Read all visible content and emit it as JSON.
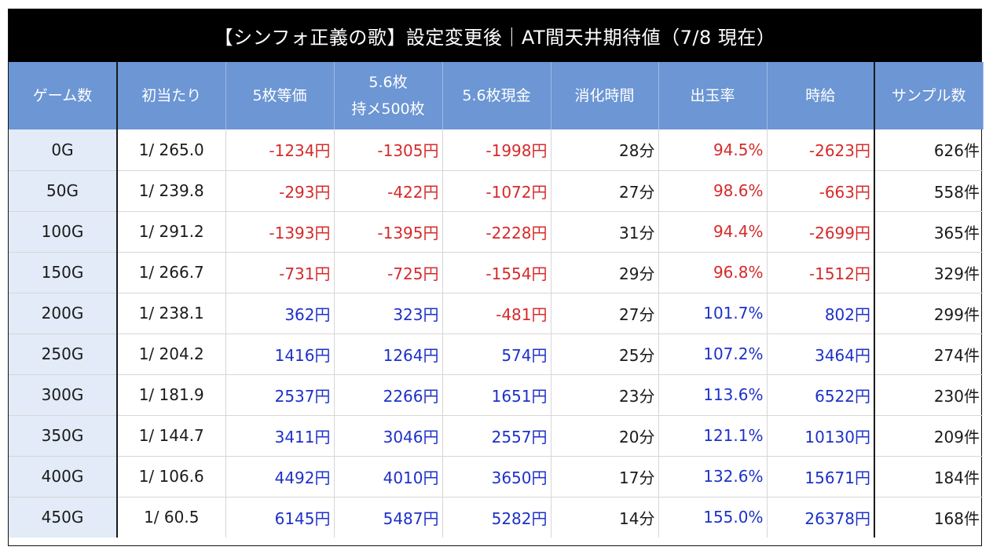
{
  "title": "【シンフォ正義の歌】設定変更後｜AT間天井期待値（7/8 現在）",
  "colors": {
    "header_bg": "#6c96d4",
    "title_bg": "#000000",
    "game_col_bg": "#e2ebf7",
    "negative": "#d62a2a",
    "positive": "#1d31c9"
  },
  "headers": {
    "game": "ゲーム数",
    "first_hit": "初当たり",
    "v5": "5枚等価",
    "v56_hold_line1": "5.6枚",
    "v56_hold_line2": "持メ500枚",
    "v56_cash": "5.6枚現金",
    "time": "消化時間",
    "payout": "出玉率",
    "hourly": "時給",
    "samples": "サンプル数"
  },
  "rows": [
    {
      "game": "0G",
      "first_hit": "1/ 265.0",
      "v5": "-1234円",
      "v56_hold": "-1305円",
      "v56_cash": "-1998円",
      "time": "28分",
      "payout": "94.5%",
      "hourly": "-2623円",
      "samples": "626件"
    },
    {
      "game": "50G",
      "first_hit": "1/ 239.8",
      "v5": "-293円",
      "v56_hold": "-422円",
      "v56_cash": "-1072円",
      "time": "27分",
      "payout": "98.6%",
      "hourly": "-663円",
      "samples": "558件"
    },
    {
      "game": "100G",
      "first_hit": "1/ 291.2",
      "v5": "-1393円",
      "v56_hold": "-1395円",
      "v56_cash": "-2228円",
      "time": "31分",
      "payout": "94.4%",
      "hourly": "-2699円",
      "samples": "365件"
    },
    {
      "game": "150G",
      "first_hit": "1/ 266.7",
      "v5": "-731円",
      "v56_hold": "-725円",
      "v56_cash": "-1554円",
      "time": "29分",
      "payout": "96.8%",
      "hourly": "-1512円",
      "samples": "329件"
    },
    {
      "game": "200G",
      "first_hit": "1/ 238.1",
      "v5": "362円",
      "v56_hold": "323円",
      "v56_cash": "-481円",
      "time": "27分",
      "payout": "101.7%",
      "hourly": "802円",
      "samples": "299件"
    },
    {
      "game": "250G",
      "first_hit": "1/ 204.2",
      "v5": "1416円",
      "v56_hold": "1264円",
      "v56_cash": "574円",
      "time": "25分",
      "payout": "107.2%",
      "hourly": "3464円",
      "samples": "274件"
    },
    {
      "game": "300G",
      "first_hit": "1/ 181.9",
      "v5": "2537円",
      "v56_hold": "2266円",
      "v56_cash": "1651円",
      "time": "23分",
      "payout": "113.6%",
      "hourly": "6522円",
      "samples": "230件"
    },
    {
      "game": "350G",
      "first_hit": "1/ 144.7",
      "v5": "3411円",
      "v56_hold": "3046円",
      "v56_cash": "2557円",
      "time": "20分",
      "payout": "121.1%",
      "hourly": "10130円",
      "samples": "209件"
    },
    {
      "game": "400G",
      "first_hit": "1/ 106.6",
      "v5": "4492円",
      "v56_hold": "4010円",
      "v56_cash": "3650円",
      "time": "17分",
      "payout": "132.6%",
      "hourly": "15671円",
      "samples": "184件"
    },
    {
      "game": "450G",
      "first_hit": "1/ 60.5",
      "v5": "6145円",
      "v56_hold": "5487円",
      "v56_cash": "5282円",
      "time": "14分",
      "payout": "155.0%",
      "hourly": "26378円",
      "samples": "168件"
    }
  ]
}
